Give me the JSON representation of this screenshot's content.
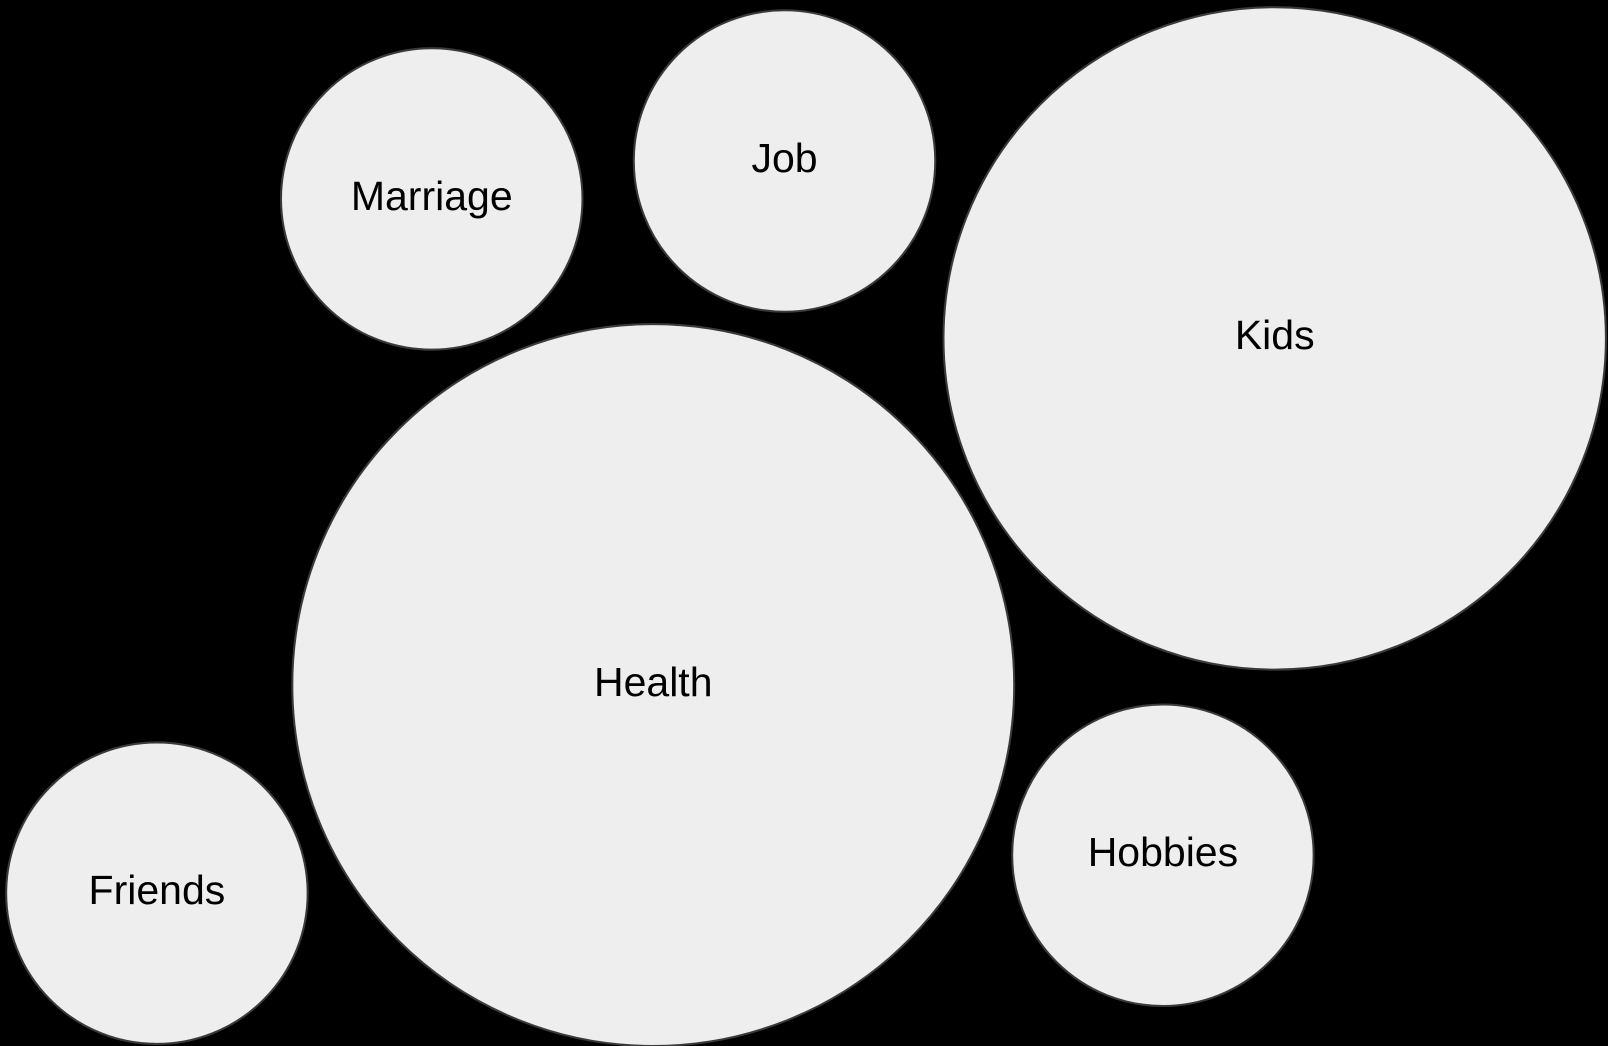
{
  "nodes": [
    {
      "label": "Marriage"
    },
    {
      "label": "Job"
    },
    {
      "label": "Kids"
    },
    {
      "label": "Health"
    },
    {
      "label": "Friends"
    },
    {
      "label": "Hobbies"
    }
  ]
}
